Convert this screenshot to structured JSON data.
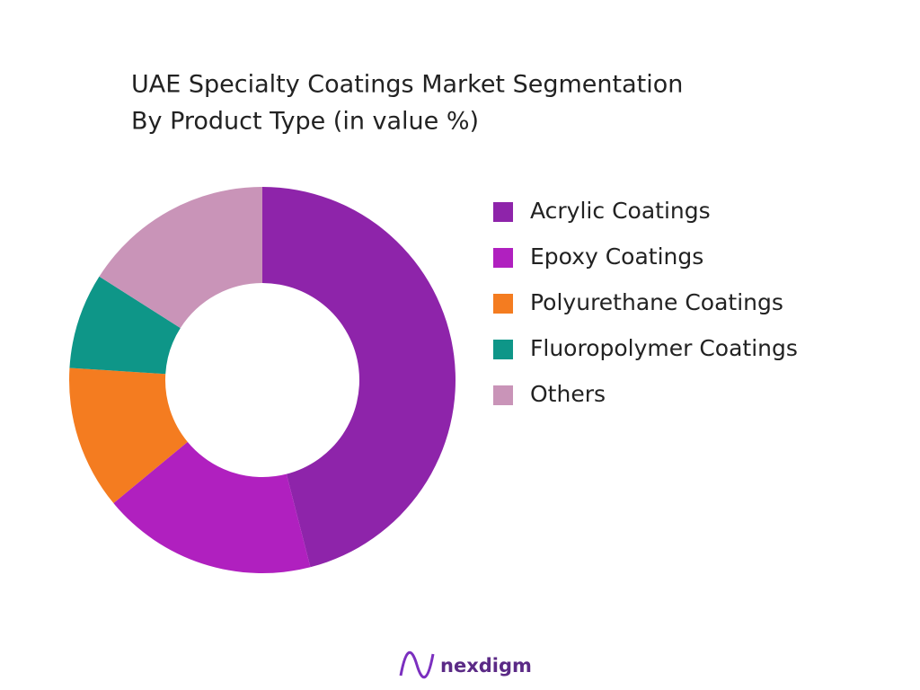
{
  "chart_data": {
    "type": "donut",
    "title": "UAE Specialty Coatings Market Segmentation",
    "subtitle": "By Product Type (in value %)",
    "categories": [
      "Acrylic Coatings",
      "Epoxy Coatings",
      "Polyurethane Coatings",
      "Fluoropolymer Coatings",
      "Others"
    ],
    "values": [
      46,
      18,
      12,
      8,
      16
    ],
    "colors": [
      "#8e24aa",
      "#b020bf",
      "#f47c20",
      "#0e9688",
      "#c994b8"
    ],
    "legend": "right"
  },
  "footer": {
    "brand": "nexdigm"
  }
}
